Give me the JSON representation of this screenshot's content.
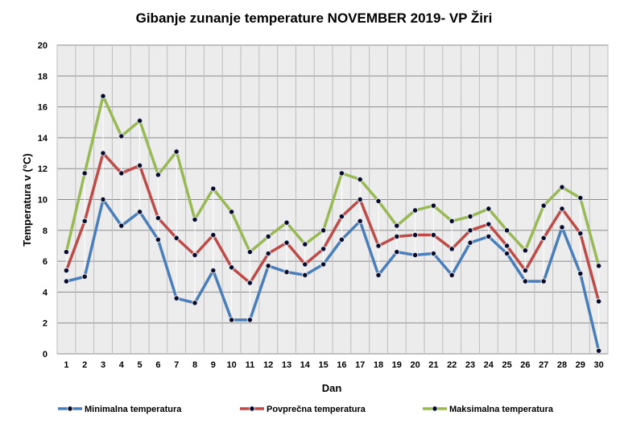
{
  "chart_data": {
    "type": "line",
    "title": "Gibanje zunanje temperature NOVEMBER 2019- VP Žiri",
    "xlabel": "Dan",
    "ylabel": "Temperatura v (°C)",
    "ylim": [
      0,
      20
    ],
    "yticks": [
      "0",
      "2",
      "4",
      "6",
      "8",
      "10",
      "12",
      "14",
      "16",
      "18",
      "20"
    ],
    "grid": true,
    "legend_position": "bottom",
    "categories": [
      "1",
      "2",
      "3",
      "4",
      "5",
      "6",
      "7",
      "8",
      "9",
      "10",
      "11",
      "12",
      "13",
      "14",
      "15",
      "16",
      "17",
      "18",
      "19",
      "20",
      "21",
      "22",
      "23",
      "24",
      "25",
      "26",
      "27",
      "28",
      "29",
      "30"
    ],
    "series": [
      {
        "name": "Minimalna temperatura",
        "color": "#4a7ebb",
        "values": [
          4.7,
          5.0,
          10.0,
          8.3,
          9.2,
          7.4,
          3.6,
          3.3,
          5.4,
          2.2,
          2.2,
          5.7,
          5.3,
          5.1,
          5.8,
          7.4,
          8.6,
          5.1,
          6.6,
          6.4,
          6.5,
          5.1,
          7.2,
          7.6,
          6.5,
          4.7,
          4.7,
          8.2,
          5.2,
          0.2
        ]
      },
      {
        "name": "Povprečna temperatura",
        "color": "#be4b48",
        "values": [
          5.4,
          8.6,
          13.0,
          11.7,
          12.2,
          8.8,
          7.5,
          6.4,
          7.7,
          5.6,
          4.6,
          6.5,
          7.2,
          5.8,
          6.8,
          8.9,
          10.0,
          7.0,
          7.6,
          7.7,
          7.7,
          6.8,
          8.0,
          8.4,
          7.0,
          5.4,
          7.5,
          9.4,
          7.8,
          3.4
        ]
      },
      {
        "name": "Maksimalna temperatura",
        "color": "#98b954",
        "values": [
          6.6,
          11.7,
          16.7,
          14.1,
          15.1,
          11.6,
          13.1,
          8.7,
          10.7,
          9.2,
          6.6,
          7.6,
          8.5,
          7.1,
          8.0,
          11.7,
          11.3,
          9.9,
          8.3,
          9.3,
          9.6,
          8.6,
          8.9,
          9.4,
          8.0,
          6.7,
          9.6,
          10.8,
          10.1,
          5.7
        ]
      }
    ]
  }
}
